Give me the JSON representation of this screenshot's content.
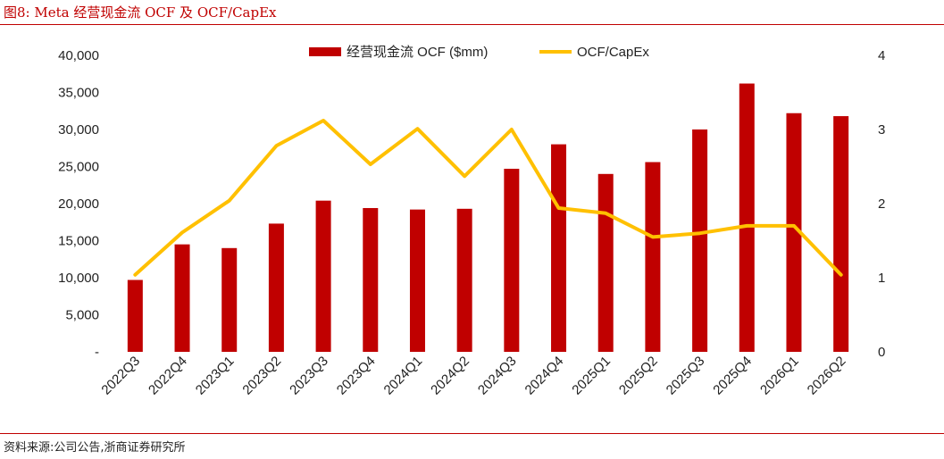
{
  "figure": {
    "title": "图8:   Meta 经营现金流 OCF 及 OCF/CapEx",
    "source": "资料来源:公司公告,浙商证券研究所"
  },
  "colors": {
    "bar": "#c00000",
    "line": "#ffc000",
    "rule": "#c00000"
  },
  "chart_data": {
    "type": "bar",
    "categories": [
      "2022Q3",
      "2022Q4",
      "2023Q1",
      "2023Q2",
      "2023Q3",
      "2023Q4",
      "2024Q1",
      "2024Q2",
      "2024Q3",
      "2024Q4",
      "2025Q1",
      "2025Q2",
      "2025Q3",
      "2025Q4",
      "2026Q1",
      "2026Q2"
    ],
    "series": [
      {
        "name": "经营现金流 OCF ($mm)",
        "type": "bar",
        "axis": "left",
        "values": [
          9700,
          14500,
          14000,
          17300,
          20400,
          19400,
          19200,
          19300,
          24700,
          28000,
          24000,
          25600,
          30000,
          36200,
          32200,
          31800
        ]
      },
      {
        "name": "OCF/CapEx",
        "type": "line",
        "axis": "right",
        "values": [
          1.04,
          1.61,
          2.04,
          2.78,
          3.12,
          2.53,
          3.01,
          2.37,
          3.0,
          1.94,
          1.87,
          1.55,
          1.6,
          1.7,
          1.7,
          1.04
        ]
      }
    ],
    "y_left": {
      "min": 0,
      "max": 40000,
      "ticks": [
        "-",
        "5,000",
        "10,000",
        "15,000",
        "20,000",
        "25,000",
        "30,000",
        "35,000",
        "40,000"
      ]
    },
    "y_right": {
      "min": 0,
      "max": 4,
      "ticks": [
        "0",
        "1",
        "2",
        "3",
        "4"
      ]
    },
    "legend": "top-center",
    "grid": false
  }
}
